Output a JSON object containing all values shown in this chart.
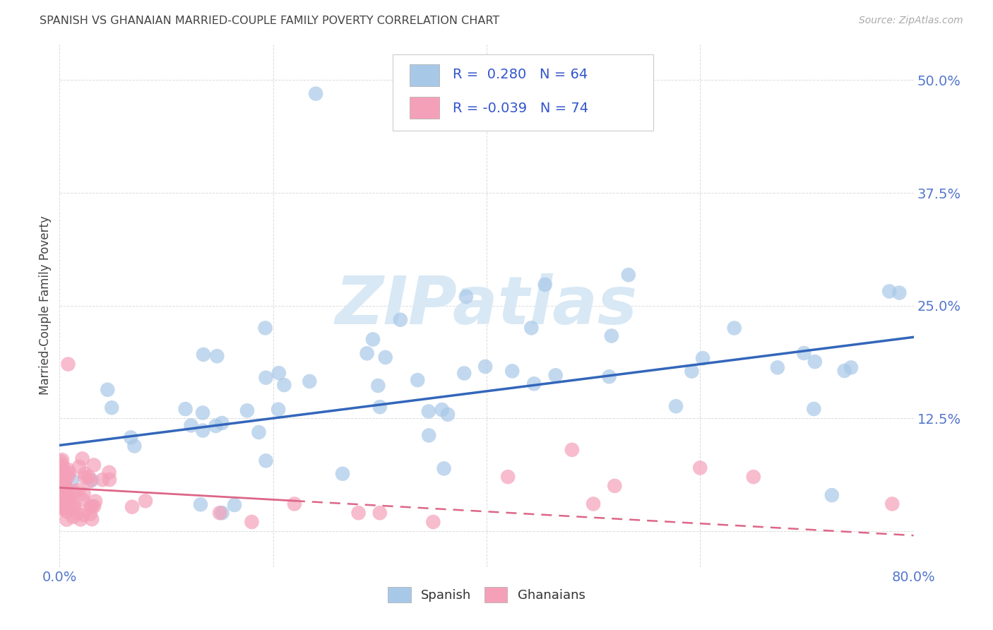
{
  "title": "SPANISH VS GHANAIAN MARRIED-COUPLE FAMILY POVERTY CORRELATION CHART",
  "source_text": "Source: ZipAtlas.com",
  "ylabel": "Married-Couple Family Poverty",
  "xlim": [
    0.0,
    0.8
  ],
  "ylim": [
    -0.04,
    0.54
  ],
  "xtick_vals": [
    0.0,
    0.2,
    0.4,
    0.6,
    0.8
  ],
  "xtick_labels": [
    "0.0%",
    "",
    "",
    "",
    "80.0%"
  ],
  "ytick_vals": [
    0.0,
    0.125,
    0.25,
    0.375,
    0.5
  ],
  "ytick_labels": [
    "",
    "12.5%",
    "25.0%",
    "37.5%",
    "50.0%"
  ],
  "blue_color": "#A8C8E8",
  "pink_color": "#F4A0B8",
  "blue_line_color": "#3366BB",
  "pink_line_color": "#DD6688",
  "watermark_color": "#D8E8F4",
  "legend_text_color": "#3355CC",
  "tick_color": "#5577CC",
  "grid_color": "#CCCCCC",
  "background_color": "#FFFFFF",
  "title_color": "#444444",
  "source_color": "#AAAAAA",
  "ylabel_color": "#444444",
  "blue_line_start_y": 0.095,
  "blue_line_end_y": 0.215,
  "pink_line_start_y": 0.048,
  "pink_line_end_y": -0.005
}
